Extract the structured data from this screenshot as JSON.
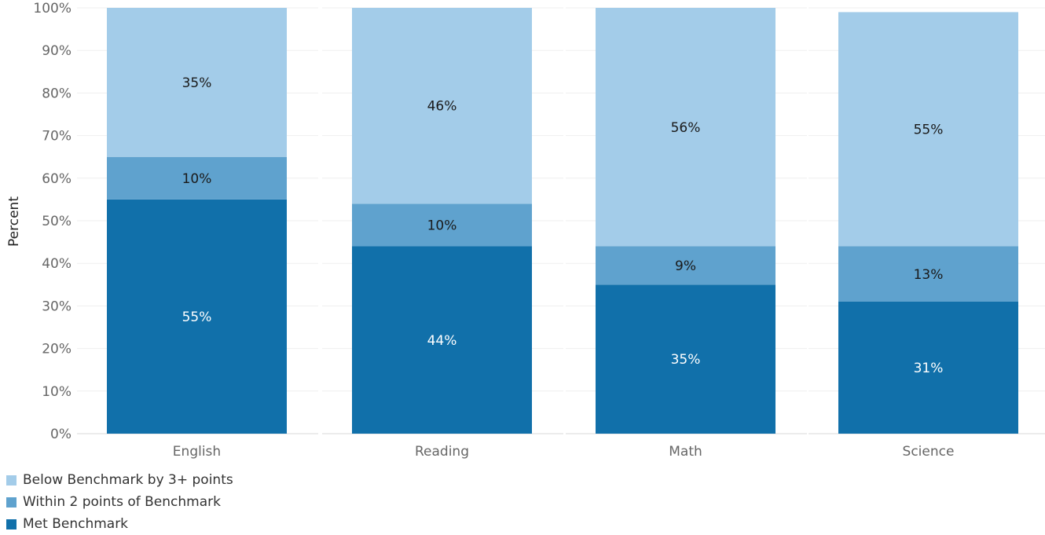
{
  "chart_data": {
    "type": "bar",
    "stacked": true,
    "ylabel": "Percent",
    "xlabel": "",
    "ylim": [
      0,
      100
    ],
    "yticks": [
      "0%",
      "10%",
      "20%",
      "30%",
      "40%",
      "50%",
      "60%",
      "70%",
      "80%",
      "90%",
      "100%"
    ],
    "categories": [
      "English",
      "Reading",
      "Math",
      "Science"
    ],
    "series": [
      {
        "name": "Met Benchmark",
        "values": [
          55,
          44,
          35,
          31
        ],
        "labels": [
          "55%",
          "44%",
          "35%",
          "31%"
        ],
        "color": "#1170aa",
        "label_color": "#ffffff"
      },
      {
        "name": "Within 2 points of Benchmark",
        "values": [
          10,
          10,
          9,
          13
        ],
        "labels": [
          "10%",
          "10%",
          "9%",
          "13%"
        ],
        "color": "#5fa2ce",
        "label_color": "#1a1a1a"
      },
      {
        "name": "Below Benchmark by 3+ points",
        "values": [
          35,
          46,
          56,
          55
        ],
        "labels": [
          "35%",
          "46%",
          "56%",
          "55%"
        ],
        "color": "#a3cce9",
        "label_color": "#1a1a1a"
      }
    ],
    "legend": {
      "placement": "bottom-left",
      "order": [
        "Below Benchmark by 3+ points",
        "Within 2 points of Benchmark",
        "Met Benchmark"
      ]
    },
    "grid": true
  }
}
